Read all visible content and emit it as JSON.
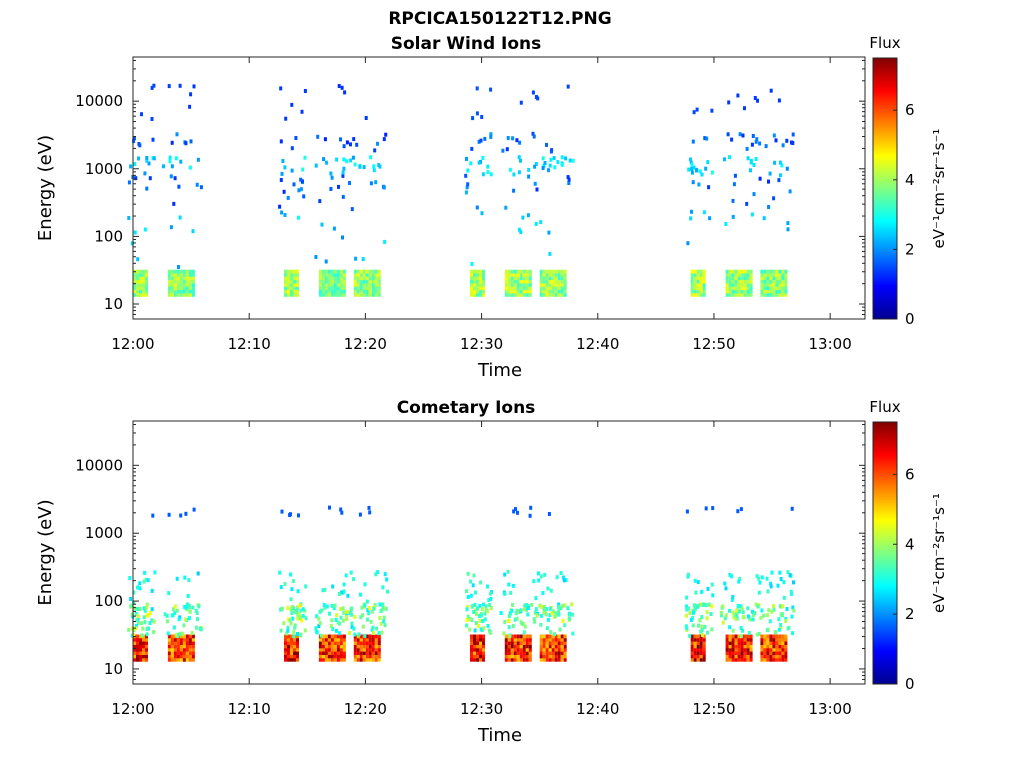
{
  "figure_title": "RPCICA150122T12.PNG",
  "colors": {
    "colormap": [
      "#00008f",
      "#0000ff",
      "#0080ff",
      "#00ffff",
      "#80ff80",
      "#ffff00",
      "#ff8000",
      "#ff0000",
      "#800000"
    ]
  },
  "chart_data": [
    {
      "type": "heatmap",
      "title": "Solar Wind Ions",
      "xlabel": "Time",
      "ylabel": "Energy (eV)",
      "x_ticks": [
        "12:00",
        "12:10",
        "12:20",
        "12:30",
        "12:40",
        "12:50",
        "13:00"
      ],
      "xlim": [
        "12:00",
        "13:03"
      ],
      "y_scale": "log",
      "y_ticks": [
        "10",
        "100",
        "1000",
        "10000"
      ],
      "ylim": [
        6,
        45000
      ],
      "colorbar": {
        "label": "Flux",
        "unit": "eV⁻¹cm⁻²sr⁻¹s⁻¹",
        "ticks": [
          "0",
          "2",
          "4",
          "6"
        ],
        "range": [
          0,
          7.5
        ]
      },
      "bursts": [
        {
          "start": "12:00",
          "end": "12:01",
          "intensity": [
            4.2,
            2.6,
            1.8
          ]
        },
        {
          "start": "12:03",
          "end": "12:05",
          "intensity": [
            4.1,
            2.5,
            1.7
          ]
        },
        {
          "start": "12:13",
          "end": "12:14",
          "intensity": [
            4.3,
            2.6,
            1.7
          ]
        },
        {
          "start": "12:16",
          "end": "12:18",
          "intensity": [
            4.0,
            2.4,
            1.6
          ]
        },
        {
          "start": "12:19",
          "end": "12:21",
          "intensity": [
            4.2,
            2.5,
            1.7
          ]
        },
        {
          "start": "12:29",
          "end": "12:30",
          "intensity": [
            4.4,
            2.6,
            1.9
          ]
        },
        {
          "start": "12:32",
          "end": "12:34",
          "intensity": [
            4.3,
            2.6,
            1.8
          ]
        },
        {
          "start": "12:35",
          "end": "12:37",
          "intensity": [
            4.2,
            2.5,
            1.8
          ]
        },
        {
          "start": "12:48",
          "end": "12:49",
          "intensity": [
            4.3,
            2.5,
            1.8
          ]
        },
        {
          "start": "12:51",
          "end": "12:53",
          "intensity": [
            4.2,
            2.5,
            1.7
          ]
        },
        {
          "start": "12:54",
          "end": "12:56",
          "intensity": [
            4.1,
            2.4,
            1.7
          ]
        }
      ]
    },
    {
      "type": "heatmap",
      "title": "Cometary Ions",
      "xlabel": "Time",
      "ylabel": "Energy (eV)",
      "x_ticks": [
        "12:00",
        "12:10",
        "12:20",
        "12:30",
        "12:40",
        "12:50",
        "13:00"
      ],
      "xlim": [
        "12:00",
        "13:03"
      ],
      "y_scale": "log",
      "y_ticks": [
        "10",
        "100",
        "1000",
        "10000"
      ],
      "ylim": [
        6,
        45000
      ],
      "colorbar": {
        "label": "Flux",
        "unit": "eV⁻¹cm⁻²sr⁻¹s⁻¹",
        "ticks": [
          "0",
          "2",
          "4",
          "6"
        ],
        "range": [
          0,
          7.5
        ]
      },
      "bursts": [
        {
          "start": "12:00",
          "end": "12:01",
          "intensity": [
            6.8,
            4.2,
            2.8
          ]
        },
        {
          "start": "12:03",
          "end": "12:05",
          "intensity": [
            6.6,
            4.0,
            2.7
          ]
        },
        {
          "start": "12:13",
          "end": "12:14",
          "intensity": [
            6.9,
            4.3,
            2.9
          ]
        },
        {
          "start": "12:16",
          "end": "12:18",
          "intensity": [
            6.7,
            4.1,
            2.8
          ]
        },
        {
          "start": "12:19",
          "end": "12:21",
          "intensity": [
            6.8,
            4.2,
            2.8
          ]
        },
        {
          "start": "12:29",
          "end": "12:30",
          "intensity": [
            6.9,
            4.3,
            2.9
          ]
        },
        {
          "start": "12:32",
          "end": "12:34",
          "intensity": [
            6.8,
            4.2,
            2.8
          ]
        },
        {
          "start": "12:35",
          "end": "12:37",
          "intensity": [
            6.7,
            4.1,
            2.8
          ]
        },
        {
          "start": "12:48",
          "end": "12:49",
          "intensity": [
            6.9,
            4.2,
            2.8
          ]
        },
        {
          "start": "12:51",
          "end": "12:53",
          "intensity": [
            6.8,
            4.1,
            2.8
          ]
        },
        {
          "start": "12:54",
          "end": "12:56",
          "intensity": [
            6.7,
            4.0,
            2.7
          ]
        }
      ]
    }
  ]
}
